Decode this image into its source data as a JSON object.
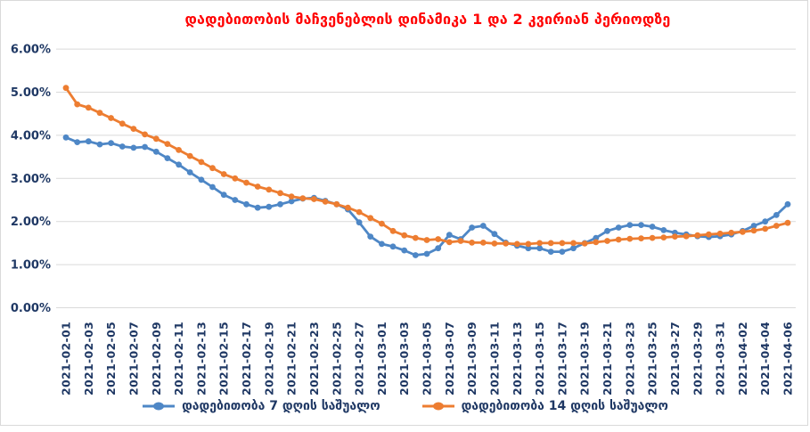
{
  "chart_data": {
    "type": "line",
    "title": "დადებითობის მაჩვენებლის დინამიკა 1 და 2 კვირიან პერიოდზე",
    "title_color": "#FF0000",
    "axis_label_color": "#1F3864",
    "grid_color": "#D9D9D9",
    "grid": true,
    "legend_position": "bottom",
    "ylim": [
      0,
      6
    ],
    "y_ticks": [
      "0.00%",
      "1.00%",
      "2.00%",
      "3.00%",
      "4.00%",
      "5.00%",
      "6.00%"
    ],
    "x_label_every": 2,
    "x": [
      "2021-02-01",
      "2021-02-02",
      "2021-02-03",
      "2021-02-04",
      "2021-02-05",
      "2021-02-06",
      "2021-02-07",
      "2021-02-08",
      "2021-02-09",
      "2021-02-10",
      "2021-02-11",
      "2021-02-12",
      "2021-02-13",
      "2021-02-14",
      "2021-02-15",
      "2021-02-16",
      "2021-02-17",
      "2021-02-18",
      "2021-02-19",
      "2021-02-20",
      "2021-02-21",
      "2021-02-22",
      "2021-02-23",
      "2021-02-24",
      "2021-02-25",
      "2021-02-26",
      "2021-02-27",
      "2021-02-28",
      "2021-03-01",
      "2021-03-02",
      "2021-03-03",
      "2021-03-04",
      "2021-03-05",
      "2021-03-06",
      "2021-03-07",
      "2021-03-08",
      "2021-03-09",
      "2021-03-10",
      "2021-03-11",
      "2021-03-12",
      "2021-03-13",
      "2021-03-14",
      "2021-03-15",
      "2021-03-16",
      "2021-03-17",
      "2021-03-18",
      "2021-03-19",
      "2021-03-20",
      "2021-03-21",
      "2021-03-22",
      "2021-03-23",
      "2021-03-24",
      "2021-03-25",
      "2021-03-26",
      "2021-03-27",
      "2021-03-28",
      "2021-03-29",
      "2021-03-30",
      "2021-03-31",
      "2021-04-01",
      "2021-04-02",
      "2021-04-03",
      "2021-04-04",
      "2021-04-05",
      "2021-04-06"
    ],
    "series": [
      {
        "name": "დადებითობა 7 დღის საშუალო",
        "color": "#4E87C6",
        "values": [
          3.95,
          3.84,
          3.86,
          3.79,
          3.82,
          3.74,
          3.71,
          3.73,
          3.62,
          3.47,
          3.32,
          3.14,
          2.97,
          2.8,
          2.62,
          2.5,
          2.4,
          2.32,
          2.34,
          2.4,
          2.47,
          2.53,
          2.55,
          2.48,
          2.4,
          2.28,
          1.98,
          1.65,
          1.48,
          1.42,
          1.33,
          1.22,
          1.25,
          1.38,
          1.69,
          1.59,
          1.86,
          1.9,
          1.71,
          1.51,
          1.44,
          1.38,
          1.38,
          1.3,
          1.3,
          1.38,
          1.5,
          1.62,
          1.78,
          1.86,
          1.92,
          1.92,
          1.88,
          1.8,
          1.74,
          1.7,
          1.66,
          1.64,
          1.66,
          1.7,
          1.78,
          1.9,
          2.0,
          2.15,
          2.4
        ]
      },
      {
        "name": "დადებითობა 14 დღის საშუალო",
        "color": "#ED7D31",
        "values": [
          5.1,
          4.72,
          4.64,
          4.52,
          4.4,
          4.27,
          4.15,
          4.02,
          3.92,
          3.8,
          3.66,
          3.52,
          3.38,
          3.24,
          3.1,
          3.0,
          2.9,
          2.81,
          2.74,
          2.66,
          2.58,
          2.54,
          2.52,
          2.46,
          2.4,
          2.32,
          2.22,
          2.08,
          1.95,
          1.78,
          1.68,
          1.62,
          1.57,
          1.59,
          1.52,
          1.55,
          1.51,
          1.51,
          1.49,
          1.49,
          1.48,
          1.48,
          1.5,
          1.5,
          1.5,
          1.5,
          1.49,
          1.52,
          1.55,
          1.58,
          1.6,
          1.61,
          1.62,
          1.63,
          1.65,
          1.66,
          1.68,
          1.7,
          1.72,
          1.74,
          1.76,
          1.79,
          1.83,
          1.9,
          1.97
        ]
      }
    ]
  }
}
